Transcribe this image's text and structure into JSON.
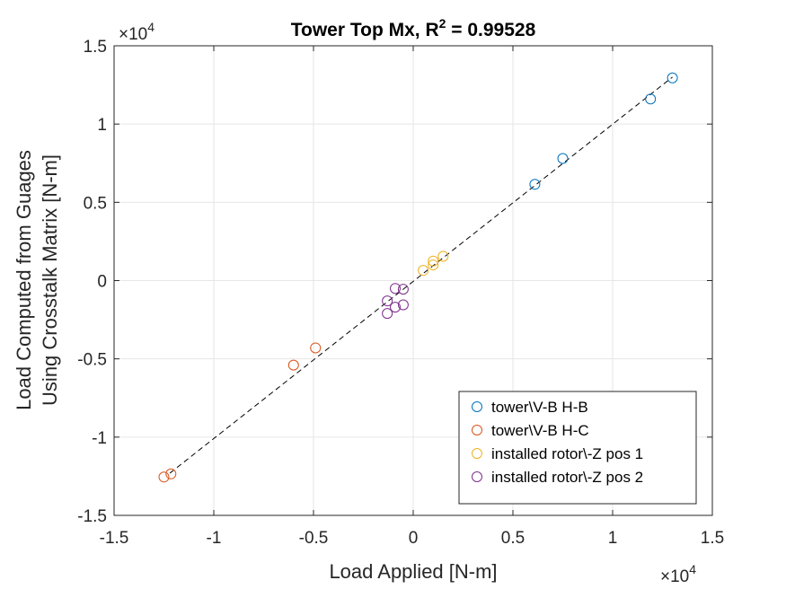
{
  "chart_data": {
    "type": "scatter",
    "title_main": "Tower Top Mx, R",
    "title_sup": "2",
    "title_tail": " = 0.99528",
    "xlabel": "Load Applied [N-m]",
    "ylabel_line1": "Load Computed from Guages",
    "ylabel_line2": "Using Crosstalk Matrix [N-m]",
    "xlim": [
      -15000,
      15000
    ],
    "ylim": [
      -15000,
      15000
    ],
    "xticks": [
      -15000,
      -10000,
      -5000,
      0,
      5000,
      10000,
      15000
    ],
    "yticks": [
      -15000,
      -10000,
      -5000,
      0,
      5000,
      10000,
      15000
    ],
    "xtick_labels": [
      "-1.5",
      "-1",
      "-0.5",
      "0",
      "0.5",
      "1",
      "1.5"
    ],
    "ytick_labels": [
      "-1.5",
      "-1",
      "-0.5",
      "0",
      "0.5",
      "1",
      "1.5"
    ],
    "x_exponent_base": "×10",
    "x_exponent_power": "4",
    "y_exponent_base": "×10",
    "y_exponent_power": "4",
    "grid": true,
    "legend_position": "lower-right",
    "fit_line": {
      "x": [
        -12200,
        13000
      ],
      "y": [
        -12300,
        13000
      ],
      "color": "#000000",
      "style": "dashed"
    },
    "series": [
      {
        "name": "tower\\V-B H-B",
        "color": "#0072BD",
        "points": [
          [
            13000,
            12950
          ],
          [
            11900,
            11600
          ],
          [
            7500,
            7800
          ],
          [
            6100,
            6150
          ]
        ]
      },
      {
        "name": "tower\\V-B H-C",
        "color": "#D95319",
        "points": [
          [
            -12500,
            -12550
          ],
          [
            -12150,
            -12350
          ],
          [
            -6000,
            -5400
          ],
          [
            -4900,
            -4300
          ]
        ]
      },
      {
        "name": "installed rotor\\-Z pos 1",
        "color": "#EDB120",
        "points": [
          [
            500,
            650
          ],
          [
            1000,
            1000
          ],
          [
            1000,
            1250
          ],
          [
            1500,
            1550
          ]
        ]
      },
      {
        "name": "installed rotor\\-Z pos 2",
        "color": "#7E2F8E",
        "points": [
          [
            -900,
            -500
          ],
          [
            -500,
            -550
          ],
          [
            -1300,
            -1300
          ],
          [
            -1300,
            -2100
          ],
          [
            -900,
            -1700
          ],
          [
            -500,
            -1550
          ]
        ]
      }
    ]
  }
}
